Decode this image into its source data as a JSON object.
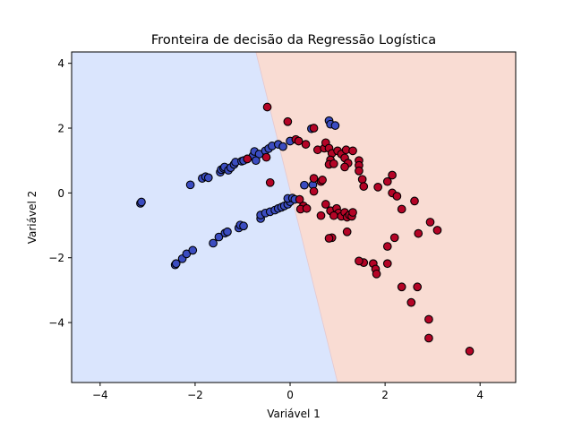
{
  "chart_data": {
    "type": "scatter",
    "title": "Fronteira de decisão da Regressão Logística",
    "xlabel": "Variável 1",
    "ylabel": "Variável 2",
    "xlim": [
      -4.6,
      4.75
    ],
    "ylim": [
      -5.85,
      4.35
    ],
    "xticks": [
      -4,
      -2,
      0,
      2,
      4
    ],
    "yticks": [
      -4,
      -2,
      0,
      2,
      4
    ],
    "xtick_labels": [
      "−4",
      "−2",
      "0",
      "2",
      "4"
    ],
    "ytick_labels": [
      "−4",
      "−2",
      "0",
      "2",
      "4"
    ],
    "grid": false,
    "regions": [
      {
        "class": 0,
        "color": "#dae5fd"
      },
      {
        "class": 1,
        "color": "#f9dcd3"
      }
    ],
    "boundary": {
      "x_at_top": -0.72,
      "x_at_bottom": 1.0
    },
    "series": [
      {
        "class": 0,
        "color": "#3b4cc0",
        "points": [
          [
            -3.15,
            -0.32
          ],
          [
            -3.13,
            -0.28
          ],
          [
            -2.42,
            -2.22
          ],
          [
            -2.4,
            -2.18
          ],
          [
            -2.27,
            -2.03
          ],
          [
            -2.18,
            -1.88
          ],
          [
            -2.05,
            -1.77
          ],
          [
            -1.62,
            -1.55
          ],
          [
            -1.5,
            -1.36
          ],
          [
            -1.37,
            -1.24
          ],
          [
            -1.32,
            -1.2
          ],
          [
            -1.08,
            -1.08
          ],
          [
            -1.05,
            -0.99
          ],
          [
            -0.98,
            -1.02
          ],
          [
            -0.62,
            -0.79
          ],
          [
            -0.62,
            -0.68
          ],
          [
            -0.52,
            -0.62
          ],
          [
            -0.42,
            -0.58
          ],
          [
            -0.32,
            -0.53
          ],
          [
            -0.25,
            -0.48
          ],
          [
            -0.18,
            -0.44
          ],
          [
            -0.12,
            -0.4
          ],
          [
            -0.05,
            -0.35
          ],
          [
            0.0,
            -0.27
          ],
          [
            -0.05,
            -0.17
          ],
          [
            0.05,
            -0.16
          ],
          [
            0.1,
            -0.2
          ],
          [
            0.3,
            0.24
          ],
          [
            0.48,
            0.25
          ],
          [
            -2.1,
            0.25
          ],
          [
            -1.85,
            0.45
          ],
          [
            -1.78,
            0.5
          ],
          [
            -1.72,
            0.47
          ],
          [
            -1.47,
            0.64
          ],
          [
            -1.45,
            0.72
          ],
          [
            -1.4,
            0.76
          ],
          [
            -1.38,
            0.8
          ],
          [
            -1.3,
            0.7
          ],
          [
            -1.25,
            0.78
          ],
          [
            -1.18,
            0.88
          ],
          [
            -1.15,
            0.95
          ],
          [
            -1.02,
            0.98
          ],
          [
            -0.98,
            1.0
          ],
          [
            -0.9,
            1.05
          ],
          [
            -0.78,
            1.15
          ],
          [
            -0.75,
            1.28
          ],
          [
            -0.65,
            1.2
          ],
          [
            -0.52,
            1.3
          ],
          [
            -0.45,
            1.37
          ],
          [
            -0.38,
            1.45
          ],
          [
            -0.25,
            1.5
          ],
          [
            -0.15,
            1.43
          ],
          [
            0.0,
            1.6
          ],
          [
            0.45,
            1.98
          ],
          [
            0.82,
            2.23
          ],
          [
            0.85,
            2.12
          ],
          [
            0.95,
            2.08
          ],
          [
            -0.72,
            1.0
          ]
        ]
      },
      {
        "class": 1,
        "color": "#b40426",
        "points": [
          [
            -0.48,
            2.65
          ],
          [
            -0.05,
            2.2
          ],
          [
            0.5,
            2.0
          ],
          [
            0.12,
            1.65
          ],
          [
            0.18,
            1.6
          ],
          [
            0.33,
            1.5
          ],
          [
            0.58,
            1.33
          ],
          [
            0.72,
            1.38
          ],
          [
            0.75,
            1.55
          ],
          [
            0.82,
            1.38
          ],
          [
            0.88,
            1.22
          ],
          [
            0.85,
            1.02
          ],
          [
            0.82,
            0.88
          ],
          [
            0.92,
            0.9
          ],
          [
            1.0,
            1.3
          ],
          [
            1.08,
            1.2
          ],
          [
            1.15,
            1.08
          ],
          [
            1.18,
            1.33
          ],
          [
            1.22,
            0.92
          ],
          [
            1.15,
            0.8
          ],
          [
            1.32,
            1.3
          ],
          [
            1.45,
            1.0
          ],
          [
            1.45,
            0.85
          ],
          [
            1.45,
            0.68
          ],
          [
            1.52,
            0.42
          ],
          [
            1.55,
            0.2
          ],
          [
            1.85,
            0.18
          ],
          [
            2.05,
            0.35
          ],
          [
            2.15,
            0.55
          ],
          [
            2.15,
            0.0
          ],
          [
            2.25,
            -0.1
          ],
          [
            2.35,
            -0.5
          ],
          [
            2.62,
            -0.25
          ],
          [
            2.7,
            -1.25
          ],
          [
            2.95,
            -0.9
          ],
          [
            3.1,
            -1.15
          ],
          [
            2.2,
            -1.38
          ],
          [
            2.05,
            -1.65
          ],
          [
            1.75,
            -2.18
          ],
          [
            1.55,
            -2.15
          ],
          [
            1.45,
            -2.1
          ],
          [
            1.8,
            -2.35
          ],
          [
            2.05,
            -2.18
          ],
          [
            1.82,
            -2.5
          ],
          [
            2.35,
            -2.9
          ],
          [
            2.68,
            -2.9
          ],
          [
            2.55,
            -3.38
          ],
          [
            2.92,
            -3.9
          ],
          [
            2.92,
            -4.48
          ],
          [
            3.78,
            -4.88
          ],
          [
            1.2,
            -1.2
          ],
          [
            0.88,
            -1.38
          ],
          [
            0.82,
            -1.4
          ],
          [
            0.75,
            -0.35
          ],
          [
            0.85,
            -0.55
          ],
          [
            0.98,
            -0.48
          ],
          [
            1.02,
            -0.62
          ],
          [
            0.92,
            -0.7
          ],
          [
            1.08,
            -0.72
          ],
          [
            1.15,
            -0.6
          ],
          [
            1.2,
            -0.75
          ],
          [
            1.25,
            -0.68
          ],
          [
            1.3,
            -0.72
          ],
          [
            1.32,
            -0.6
          ],
          [
            0.65,
            -0.7
          ],
          [
            0.5,
            0.45
          ],
          [
            0.65,
            0.35
          ],
          [
            0.68,
            0.4
          ],
          [
            0.5,
            0.05
          ],
          [
            0.28,
            -0.4
          ],
          [
            0.22,
            -0.5
          ],
          [
            0.35,
            -0.48
          ],
          [
            -0.42,
            0.32
          ],
          [
            -0.5,
            1.1
          ],
          [
            -0.9,
            1.05
          ],
          [
            0.2,
            -0.2
          ]
        ]
      }
    ]
  }
}
